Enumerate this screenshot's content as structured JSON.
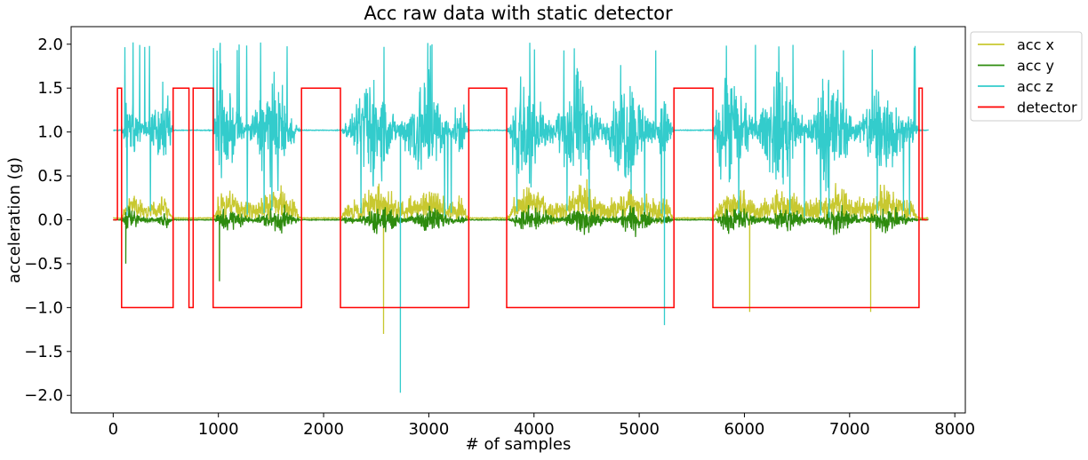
{
  "chart_data": {
    "type": "line",
    "title": "Acc raw data with static detector",
    "xlabel": "# of samples",
    "ylabel": "acceleration (g)",
    "xlim": [
      -400,
      8100
    ],
    "ylim": [
      -2.2,
      2.2
    ],
    "xticks": [
      0,
      1000,
      2000,
      3000,
      4000,
      5000,
      6000,
      7000,
      8000
    ],
    "xtick_labels": [
      "0",
      "1000",
      "2000",
      "3000",
      "4000",
      "5000",
      "6000",
      "7000",
      "8000"
    ],
    "yticks": [
      -2.0,
      -1.5,
      -1.0,
      -0.5,
      0.0,
      0.5,
      1.0,
      1.5,
      2.0
    ],
    "ytick_labels": [
      "−2.0",
      "−1.5",
      "−1.0",
      "−0.5",
      "0.0",
      "0.5",
      "1.0",
      "1.5",
      "2.0"
    ],
    "grid": false,
    "legend_position": "outside-top-right",
    "n_samples": 7750,
    "static_value_g": {
      "acc_x": 0.02,
      "acc_y": 0.0,
      "acc_z": 1.02
    },
    "active_segments": [
      {
        "start": 80,
        "end": 560,
        "acc_x_amp": 0.35,
        "acc_y_amp": 0.18,
        "acc_z_amp": 0.75
      },
      {
        "start": 950,
        "end": 1780,
        "acc_x_amp": 0.4,
        "acc_y_amp": 0.2,
        "acc_z_amp": 0.85
      },
      {
        "start": 2170,
        "end": 3370,
        "acc_x_amp": 0.45,
        "acc_y_amp": 0.22,
        "acc_z_amp": 0.9
      },
      {
        "start": 3750,
        "end": 5320,
        "acc_x_amp": 0.45,
        "acc_y_amp": 0.22,
        "acc_z_amp": 0.95
      },
      {
        "start": 5700,
        "end": 7650,
        "acc_x_amp": 0.45,
        "acc_y_amp": 0.22,
        "acc_z_amp": 0.95
      }
    ],
    "spikes": [
      {
        "series": "acc z",
        "x": 2730,
        "y": -1.97
      },
      {
        "series": "acc x",
        "x": 2570,
        "y": -1.3
      },
      {
        "series": "acc z",
        "x": 5240,
        "y": -1.2
      },
      {
        "series": "acc x",
        "x": 6050,
        "y": -1.05
      },
      {
        "series": "acc x",
        "x": 7200,
        "y": -1.05
      },
      {
        "series": "acc y",
        "x": 120,
        "y": -0.5
      },
      {
        "series": "acc y",
        "x": 1010,
        "y": -0.7
      }
    ],
    "series": [
      {
        "name": "acc x",
        "color": "#c8c830"
      },
      {
        "name": "acc y",
        "color": "#2e8b0e"
      },
      {
        "name": "acc z",
        "color": "#33cccc"
      },
      {
        "name": "detector",
        "color": "#ff0000",
        "x": [
          0,
          40,
          40,
          80,
          80,
          570,
          570,
          720,
          720,
          760,
          760,
          800,
          800,
          950,
          950,
          1790,
          1790,
          2160,
          2160,
          3380,
          3380,
          3740,
          3740,
          5330,
          5330,
          5700,
          5700,
          7660,
          7660,
          7690,
          7690,
          7740
        ],
        "y": [
          0,
          0,
          1.5,
          1.5,
          -1,
          -1,
          1.5,
          1.5,
          -1,
          -1,
          1.5,
          1.5,
          1.5,
          1.5,
          -1,
          -1,
          1.5,
          1.5,
          -1,
          -1,
          1.5,
          1.5,
          -1,
          -1,
          1.5,
          1.5,
          -1,
          -1,
          1.5,
          1.5,
          0,
          0
        ]
      }
    ]
  }
}
